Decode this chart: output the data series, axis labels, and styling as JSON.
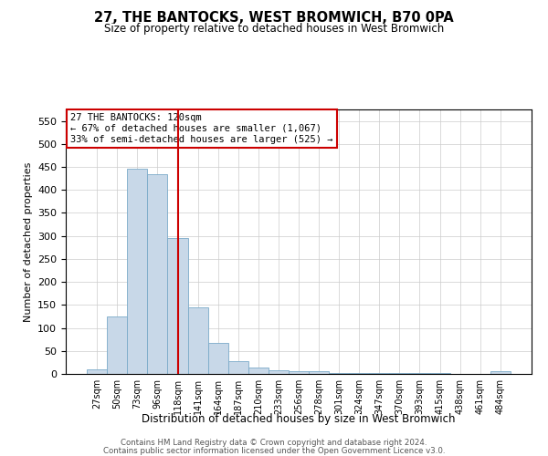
{
  "title": "27, THE BANTOCKS, WEST BROMWICH, B70 0PA",
  "subtitle": "Size of property relative to detached houses in West Bromwich",
  "xlabel": "Distribution of detached houses by size in West Bromwich",
  "ylabel": "Number of detached properties",
  "footnote1": "Contains HM Land Registry data © Crown copyright and database right 2024.",
  "footnote2": "Contains public sector information licensed under the Open Government Licence v3.0.",
  "annotation_line1": "27 THE BANTOCKS: 120sqm",
  "annotation_line2": "← 67% of detached houses are smaller (1,067)",
  "annotation_line3": "33% of semi-detached houses are larger (525) →",
  "bar_color": "#c8d8e8",
  "bar_edge_color": "#7aaac8",
  "vline_color": "#cc0000",
  "vline_x": 4,
  "categories": [
    "27sqm",
    "50sqm",
    "73sqm",
    "96sqm",
    "118sqm",
    "141sqm",
    "164sqm",
    "187sqm",
    "210sqm",
    "233sqm",
    "256sqm",
    "278sqm",
    "301sqm",
    "324sqm",
    "347sqm",
    "370sqm",
    "393sqm",
    "415sqm",
    "438sqm",
    "461sqm",
    "484sqm"
  ],
  "values": [
    10,
    125,
    447,
    435,
    295,
    145,
    68,
    27,
    13,
    8,
    6,
    5,
    2,
    2,
    1,
    1,
    1,
    1,
    0,
    0,
    6
  ],
  "ylim": [
    0,
    575
  ],
  "yticks": [
    0,
    50,
    100,
    150,
    200,
    250,
    300,
    350,
    400,
    450,
    500,
    550
  ],
  "grid_color": "#cccccc"
}
